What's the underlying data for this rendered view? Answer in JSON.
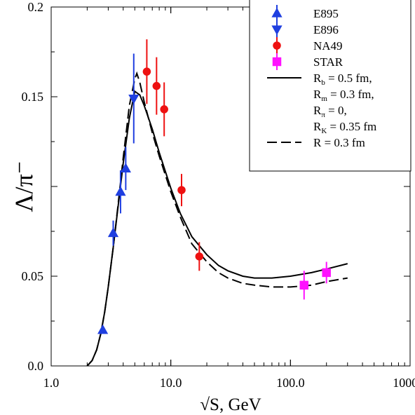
{
  "chart_data": {
    "type": "scatter",
    "title": "",
    "xlabel": "√S, GeV",
    "ylabel": "Λ/π⁻",
    "xscale": "log",
    "xlim": [
      1.0,
      1000.0
    ],
    "ylim": [
      0.0,
      0.2
    ],
    "x_ticks": [
      1.0,
      10.0,
      100.0,
      1000.0
    ],
    "x_tick_labels": [
      "1.0",
      "10.0",
      "100.0",
      "1000.0"
    ],
    "y_ticks": [
      0.0,
      0.05,
      0.15,
      0.2
    ],
    "y_tick_labels": [
      "0.0",
      "0.05",
      "0.15",
      "0.2"
    ],
    "grid": false,
    "legend_position": "top-right",
    "series": [
      {
        "name": "E895",
        "kind": "points",
        "marker": "triangle-up",
        "color": "#1f3fe0",
        "x": [
          2.7,
          3.3,
          3.8,
          4.2
        ],
        "y": [
          0.02,
          0.074,
          0.097,
          0.11
        ],
        "err": [
          0.0,
          0.007,
          0.012,
          0.012
        ]
      },
      {
        "name": "E896",
        "kind": "points",
        "marker": "triangle-down",
        "color": "#1f3fe0",
        "x": [
          4.9
        ],
        "y": [
          0.149
        ],
        "err": [
          0.025
        ]
      },
      {
        "name": "NA49",
        "kind": "points",
        "marker": "circle",
        "color": "#ee1111",
        "x": [
          6.3,
          7.6,
          8.8,
          12.3,
          17.3
        ],
        "y": [
          0.164,
          0.156,
          0.143,
          0.098,
          0.061
        ],
        "err": [
          0.018,
          0.016,
          0.015,
          0.009,
          0.008
        ]
      },
      {
        "name": "STAR",
        "kind": "points",
        "marker": "square",
        "color": "#ff11ff",
        "x": [
          130,
          200
        ],
        "y": [
          0.045,
          0.052
        ],
        "err": [
          0.008,
          0.006
        ]
      },
      {
        "name": "R_b = 0.5 fm, R_m = 0.3 fm, R_π = 0, R_K = 0.35 fm",
        "kind": "line",
        "dash": "solid",
        "color": "#000000",
        "x": [
          2.0,
          2.2,
          2.4,
          2.6,
          2.8,
          3.0,
          3.3,
          3.6,
          4.0,
          4.5,
          5.0,
          5.5,
          6.0,
          7.0,
          8.0,
          10.0,
          12.0,
          15.0,
          20.0,
          25.0,
          30.0,
          40.0,
          50.0,
          70.0,
          100.0,
          150.0,
          200.0,
          300.0
        ],
        "y": [
          0.0,
          0.003,
          0.009,
          0.018,
          0.03,
          0.044,
          0.066,
          0.087,
          0.113,
          0.138,
          0.153,
          0.151,
          0.145,
          0.132,
          0.119,
          0.099,
          0.085,
          0.072,
          0.062,
          0.056,
          0.053,
          0.05,
          0.049,
          0.049,
          0.05,
          0.052,
          0.054,
          0.057
        ]
      },
      {
        "name": "R = 0.3 fm",
        "kind": "line",
        "dash": "dashed",
        "color": "#000000",
        "x": [
          2.0,
          2.2,
          2.4,
          2.6,
          2.8,
          3.0,
          3.3,
          3.6,
          4.0,
          4.5,
          5.0,
          5.2,
          5.5,
          6.0,
          7.0,
          8.0,
          10.0,
          12.0,
          15.0,
          20.0,
          25.0,
          30.0,
          40.0,
          50.0,
          70.0,
          100.0,
          150.0,
          200.0,
          300.0
        ],
        "y": [
          0.0,
          0.003,
          0.009,
          0.018,
          0.03,
          0.044,
          0.066,
          0.088,
          0.116,
          0.145,
          0.16,
          0.163,
          0.158,
          0.147,
          0.13,
          0.117,
          0.097,
          0.083,
          0.068,
          0.058,
          0.052,
          0.049,
          0.046,
          0.045,
          0.044,
          0.044,
          0.045,
          0.047,
          0.049
        ]
      }
    ]
  },
  "legend": {
    "items": [
      {
        "lines": [
          "E895"
        ],
        "marker": "triangle-up",
        "color": "#1f3fe0"
      },
      {
        "lines": [
          "E896"
        ],
        "marker": "triangle-down",
        "color": "#1f3fe0"
      },
      {
        "lines": [
          "NA49"
        ],
        "marker": "circle",
        "color": "#ee1111"
      },
      {
        "lines": [
          "STAR"
        ],
        "marker": "square",
        "color": "#ff11ff"
      },
      {
        "lines": [
          "R|b| = 0.5 fm,",
          " R|m| = 0.3 fm,",
          " R|π| = 0,",
          " R|K| = 0.35 fm"
        ],
        "line": "solid"
      },
      {
        "lines": [
          "R = 0.3 fm"
        ],
        "line": "dashed"
      }
    ]
  }
}
